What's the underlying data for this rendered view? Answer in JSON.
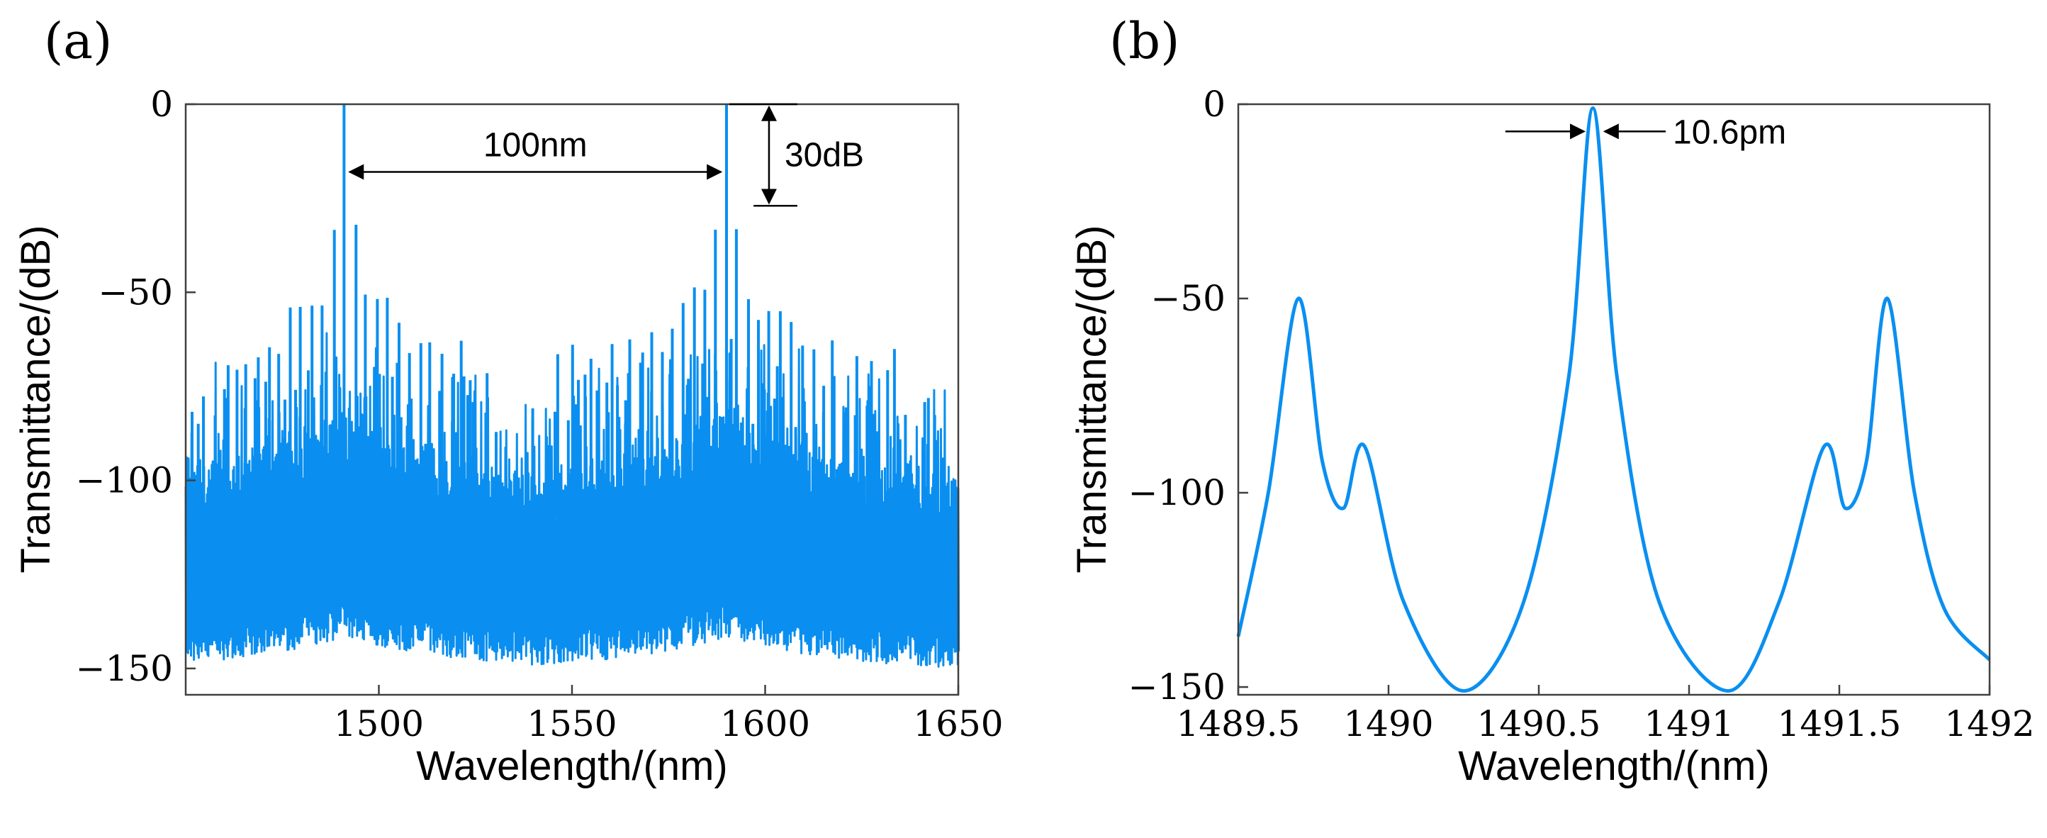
{
  "chart_data": [
    {
      "panel_label": "(a)",
      "type": "line",
      "xlabel": "Wavelength/(nm)",
      "ylabel": "Transmittance/(dB)",
      "xlim": [
        1450,
        1650
      ],
      "ylim": [
        -157,
        0
      ],
      "xticks": [
        1500,
        1550,
        1600,
        1650
      ],
      "yticks": [
        0,
        -50,
        -100,
        -150
      ],
      "ytick_labels": [
        "0",
        "−50",
        "−100",
        "−150"
      ],
      "series_color": "#0a8ff0",
      "main_peaks_nm": [
        1491,
        1590
      ],
      "main_peak_db": 0,
      "side_peak_db": -30,
      "noise_floor_db": [
        -150,
        -90
      ],
      "annotations": [
        {
          "text": "100nm",
          "kind": "h-double-arrow",
          "x_from": 1491,
          "x_to": 1590,
          "y": -18
        },
        {
          "text": "30dB",
          "kind": "v-double-arrow",
          "x": 1601,
          "y_from": 0,
          "y_to": -27
        }
      ]
    },
    {
      "panel_label": "(b)",
      "type": "line",
      "xlabel": "Wavelength/(nm)",
      "ylabel": "Transmittance/(dB)",
      "xlim": [
        1489.5,
        1492
      ],
      "ylim": [
        -152,
        0
      ],
      "xticks": [
        1489.5,
        1490,
        1490.5,
        1491,
        1491.5,
        1492
      ],
      "xtick_labels": [
        "1489.5",
        "1490",
        "1490.5",
        "1491",
        "1491.5",
        "1492"
      ],
      "yticks": [
        0,
        -50,
        -100,
        -150
      ],
      "ytick_labels": [
        "0",
        "−50",
        "−100",
        "−150"
      ],
      "series_color": "#0a8ff0",
      "x": [
        1489.5,
        1489.6,
        1489.7,
        1489.78,
        1489.85,
        1489.92,
        1490.05,
        1490.25,
        1490.45,
        1490.6,
        1490.68,
        1490.76,
        1490.9,
        1491.13,
        1491.3,
        1491.45,
        1491.52,
        1491.59,
        1491.66,
        1491.75,
        1491.85,
        1492
      ],
      "y": [
        -137,
        -100,
        -50,
        -92,
        -104,
        -88,
        -128,
        -151,
        -128,
        -70,
        -1,
        -70,
        -128,
        -151,
        -128,
        -88,
        -104,
        -92,
        -50,
        -100,
        -130,
        -143
      ],
      "annotations": [
        {
          "text": "10.6pm",
          "kind": "inward-arrows",
          "x_left": 1490.66,
          "x_right": 1490.71,
          "y": -7
        }
      ]
    }
  ]
}
